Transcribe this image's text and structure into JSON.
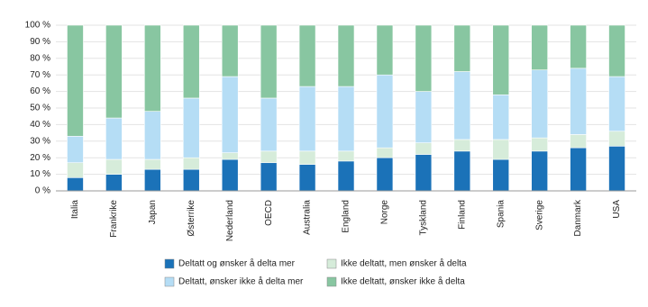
{
  "chart_data": {
    "type": "stacked-bar",
    "categories": [
      "Italia",
      "Frankrike",
      "Japan",
      "Østerrike",
      "Nederland",
      "OECD",
      "Australia",
      "England",
      "Norge",
      "Tyskland",
      "Finland",
      "Spania",
      "Sverige",
      "Danmark",
      "USA"
    ],
    "category_label_colors": [
      "#222222",
      "#222222",
      "#222222",
      "#222222",
      "#222222",
      "#2f8fce",
      "#222222",
      "#222222",
      "#2f8fce",
      "#222222",
      "#222222",
      "#222222",
      "#222222",
      "#222222",
      "#222222"
    ],
    "series": [
      {
        "name": "Deltatt og ønsker å delta mer",
        "color": "#1b72b8",
        "values": [
          8,
          10,
          13,
          13,
          19,
          17,
          16,
          18,
          20,
          22,
          24,
          19,
          24,
          26,
          27
        ]
      },
      {
        "name": "Ikke deltatt, men ønsker å delta",
        "color": "#d6ecda",
        "values": [
          9,
          9,
          6,
          7,
          4,
          7,
          8,
          6,
          6,
          7,
          7,
          12,
          8,
          8,
          9
        ]
      },
      {
        "name": "Deltatt, ønsker ikke å delta mer",
        "color": "#b5ddf5",
        "values": [
          16,
          25,
          29,
          36,
          46,
          32,
          39,
          39,
          44,
          31,
          41,
          27,
          41,
          40,
          33
        ]
      },
      {
        "name": "Ikke deltatt, ønsker ikke å delta",
        "color": "#88c6a1",
        "values": [
          67,
          56,
          52,
          44,
          31,
          44,
          37,
          37,
          30,
          40,
          28,
          42,
          27,
          26,
          31
        ]
      }
    ],
    "ylim": [
      0,
      100
    ],
    "yticks": [
      {
        "value": 0,
        "label": "0 %"
      },
      {
        "value": 10,
        "label": "10 %"
      },
      {
        "value": 20,
        "label": "20 %"
      },
      {
        "value": 30,
        "label": "30 %"
      },
      {
        "value": 40,
        "label": "40 %"
      },
      {
        "value": 50,
        "label": "50 %"
      },
      {
        "value": 60,
        "label": "60 %"
      },
      {
        "value": 70,
        "label": "70 %"
      },
      {
        "value": 80,
        "label": "80 %"
      },
      {
        "value": 90,
        "label": "90 %"
      },
      {
        "value": 100,
        "label": "100 %"
      }
    ],
    "grid": true
  }
}
